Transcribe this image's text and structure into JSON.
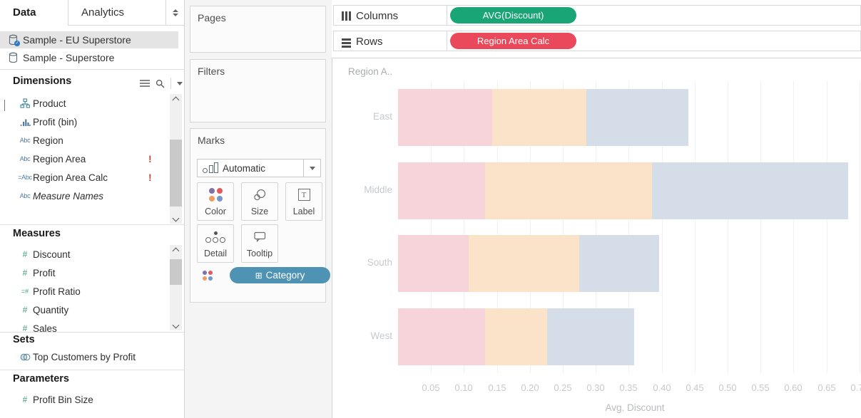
{
  "sidebar": {
    "tabs": [
      {
        "label": "Data"
      },
      {
        "label": "Analytics"
      }
    ],
    "data_sources": [
      {
        "icon": "database-icon",
        "label": "Sample - EU Superstore",
        "selected": true
      },
      {
        "icon": "database-icon",
        "label": "Sample - Superstore",
        "selected": false
      }
    ],
    "dimensions": {
      "title": "Dimensions",
      "items": [
        {
          "icon": "hierarchy-icon",
          "label": "Product",
          "expandable": true
        },
        {
          "icon": "bin-icon",
          "label": "Profit (bin)"
        },
        {
          "icon": "text-icon",
          "label": "Region"
        },
        {
          "icon": "text-icon",
          "label": "Region Area",
          "alert": "!"
        },
        {
          "icon": "calc-text-icon",
          "label": "Region Area Calc",
          "alert": "!"
        },
        {
          "icon": "text-icon",
          "label": "Measure Names",
          "italic": true
        }
      ]
    },
    "measures": {
      "title": "Measures",
      "items": [
        {
          "icon": "number-icon",
          "label": "Discount"
        },
        {
          "icon": "number-icon",
          "label": "Profit"
        },
        {
          "icon": "calc-number-icon",
          "label": "Profit Ratio"
        },
        {
          "icon": "number-icon",
          "label": "Quantity"
        },
        {
          "icon": "number-icon",
          "label": "Sales"
        }
      ]
    },
    "sets": {
      "title": "Sets",
      "items": [
        {
          "icon": "venn-icon",
          "label": "Top Customers by Profit"
        }
      ]
    },
    "parameters": {
      "title": "Parameters",
      "items": [
        {
          "icon": "number-icon",
          "label": "Profit Bin Size"
        }
      ]
    }
  },
  "cards": {
    "pages": {
      "title": "Pages"
    },
    "filters": {
      "title": "Filters"
    },
    "marks": {
      "title": "Marks",
      "mark_type": "Automatic",
      "buttons": [
        {
          "icon": "color-icon",
          "label": "Color"
        },
        {
          "icon": "size-icon",
          "label": "Size"
        },
        {
          "icon": "label-icon",
          "label": "Label"
        },
        {
          "icon": "detail-icon",
          "label": "Detail"
        },
        {
          "icon": "tooltip-icon",
          "label": "Tooltip"
        }
      ],
      "color_pill": {
        "prefix": "⊞",
        "label": "Category",
        "color": "#4e93b3"
      }
    }
  },
  "shelves": {
    "columns": {
      "label": "Columns",
      "pills": [
        {
          "label": "AVG(Discount)",
          "color": "#19a576"
        }
      ]
    },
    "rows": {
      "label": "Rows",
      "pills": [
        {
          "label": "Region Area Calc",
          "color": "#e9495a"
        }
      ]
    }
  },
  "chart_data": {
    "type": "bar",
    "orientation": "horizontal",
    "stacked": true,
    "faded": true,
    "row_header": "Region A..",
    "categories": [
      "East",
      "Middle",
      "South",
      "West"
    ],
    "series": [
      {
        "name": "segment-pink",
        "color": "#f6d4d9",
        "values": [
          0.143,
          0.132,
          0.107,
          0.132
        ]
      },
      {
        "name": "segment-orange",
        "color": "#fbe3c9",
        "values": [
          0.143,
          0.253,
          0.168,
          0.094
        ]
      },
      {
        "name": "segment-blue",
        "color": "#d4dde8",
        "values": [
          0.155,
          0.298,
          0.121,
          0.132
        ]
      }
    ],
    "totals": [
      0.441,
      0.683,
      0.396,
      0.358
    ],
    "xlabel": "Avg. Discount",
    "x_ticks": [
      0.05,
      0.1,
      0.15,
      0.2,
      0.25,
      0.3,
      0.35,
      0.4,
      0.45,
      0.5,
      0.55,
      0.6,
      0.65,
      0.7
    ],
    "xlim": [
      0,
      0.725
    ],
    "grid": "vertical",
    "legend_position": "none"
  }
}
